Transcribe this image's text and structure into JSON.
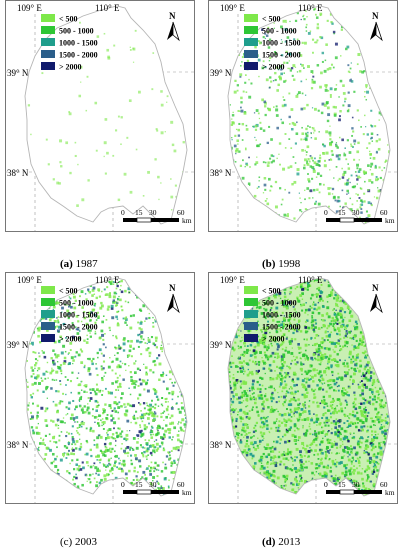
{
  "axes": {
    "lon_left": "109° E",
    "lon_right": "110° E",
    "lat_top": "39° N",
    "lat_bottom": "38° N"
  },
  "legend": {
    "classes": [
      {
        "label": "< 500",
        "color": "#7ee84a"
      },
      {
        "label": "500 - 1000",
        "color": "#2ec635"
      },
      {
        "label": "1000 - 1500",
        "color": "#1f9e8c"
      },
      {
        "label": "1500 - 2000",
        "color": "#2a5e8a"
      },
      {
        "label": "> 2000",
        "color": "#101a6c"
      }
    ]
  },
  "north_label": "N",
  "scalebar": {
    "ticks": [
      "0",
      "15",
      "30",
      "60"
    ],
    "unit": "km"
  },
  "panels": [
    {
      "tag": "(a)",
      "year": "1987",
      "density": 0.12
    },
    {
      "tag": "(b)",
      "year": "1998",
      "density": 0.45
    },
    {
      "tag": "(c)",
      "year": "2003",
      "density": 0.62
    },
    {
      "tag": "(d)",
      "year": "2013",
      "density": 0.88
    }
  ]
}
